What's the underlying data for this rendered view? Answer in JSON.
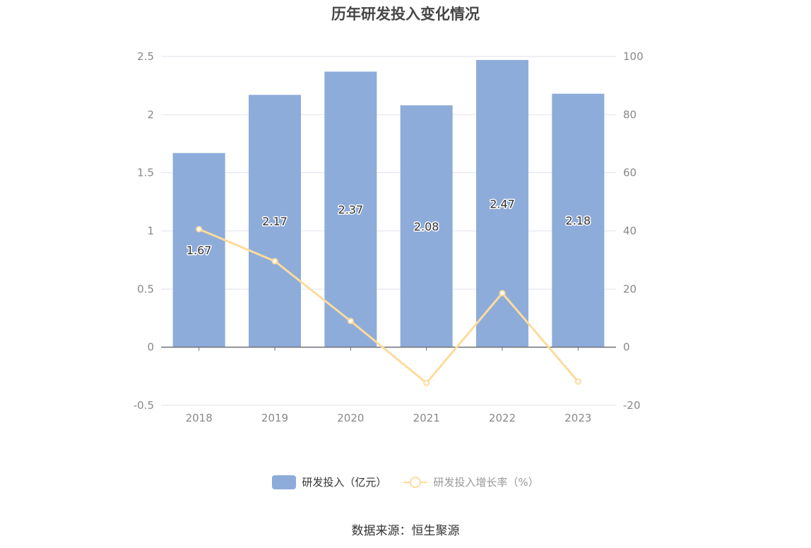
{
  "title": "历年研发投入变化情况",
  "source": "数据来源：恒生聚源",
  "colors": {
    "bar": "#8eacda",
    "line": "#fddb9c",
    "grid": "#e0e3ef",
    "axis": "#6e7079",
    "tick": "#888888"
  },
  "legend": {
    "bar_label": "研发投入（亿元）",
    "line_label": "研发投入增长率（%）"
  },
  "chart_data": {
    "type": "bar",
    "categories": [
      "2018",
      "2019",
      "2020",
      "2021",
      "2022",
      "2023"
    ],
    "series": [
      {
        "name": "研发投入（亿元）",
        "type": "bar",
        "axis": "left",
        "values": [
          1.67,
          2.17,
          2.37,
          2.08,
          2.47,
          2.18
        ],
        "labels": [
          "1.67",
          "2.17",
          "2.37",
          "2.08",
          "2.47",
          "2.18"
        ]
      },
      {
        "name": "研发投入增长率（%）",
        "type": "line",
        "axis": "right",
        "values": [
          40.6,
          29.6,
          9.0,
          -12.3,
          18.6,
          -11.8
        ]
      }
    ],
    "y_left": {
      "min": -0.5,
      "max": 2.5,
      "ticks": [
        "-0.5",
        "0",
        "0.5",
        "1",
        "1.5",
        "2",
        "2.5"
      ]
    },
    "y_right": {
      "min": -20,
      "max": 100,
      "ticks": [
        "-20",
        "0",
        "20",
        "40",
        "60",
        "80",
        "100"
      ]
    },
    "grid": true,
    "legend_position": "bottom"
  }
}
